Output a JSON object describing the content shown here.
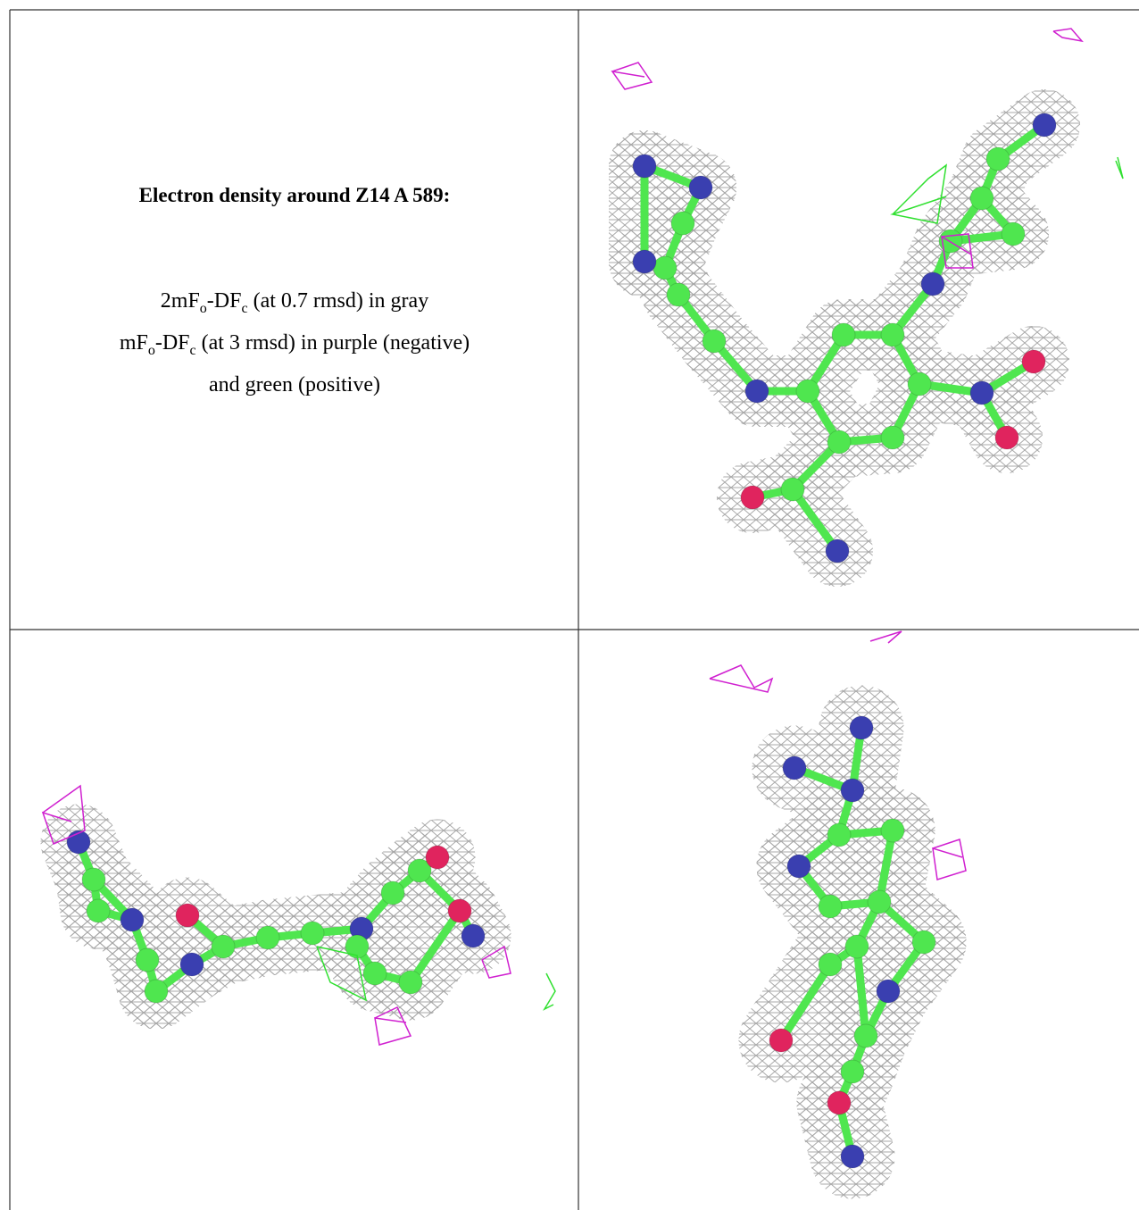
{
  "caption": {
    "title": "Electron density around Z14 A 589:",
    "lines": [
      [
        {
          "text": "2mF"
        },
        {
          "sub": "o"
        },
        {
          "text": "-DF"
        },
        {
          "sub": "c"
        },
        {
          "text": " (at 0.7 rmsd) in gray"
        }
      ],
      [
        {
          "text": "mF"
        },
        {
          "sub": "o"
        },
        {
          "text": "-DF"
        },
        {
          "sub": "c"
        },
        {
          "text": " (at 3 rmsd) in purple (negative)"
        }
      ],
      [
        {
          "text": "and green (positive)"
        }
      ]
    ]
  }
}
